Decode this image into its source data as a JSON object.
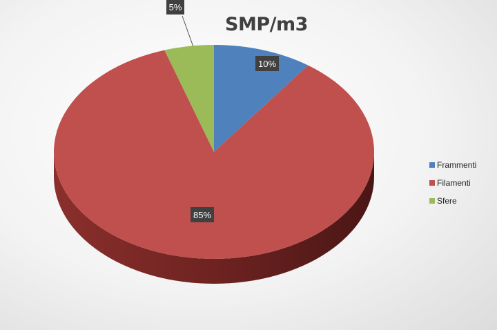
{
  "chart_data": {
    "type": "pie",
    "title": "SMP/m3",
    "categories": [
      "Frammenti",
      "Filamenti",
      "Sfere"
    ],
    "values": [
      10,
      85,
      5
    ],
    "data_labels": [
      "10%",
      "85%",
      "5%"
    ],
    "colors": [
      "#4f81bd",
      "#c0504d",
      "#9bbb59"
    ],
    "style": "3d",
    "legend": "right"
  }
}
